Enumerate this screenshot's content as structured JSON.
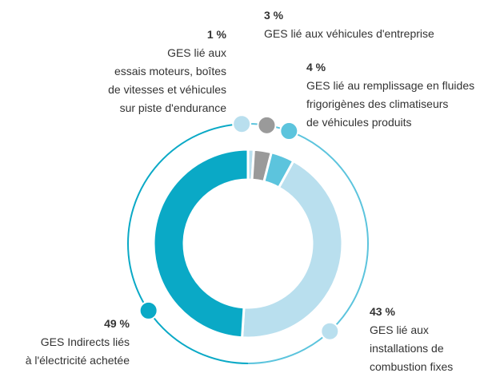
{
  "chart_data": {
    "type": "donut",
    "categories": [
      "GES lié aux\nessais moteurs, boîtes\nde vitesses et véhicules\nsur piste d'endurance",
      "GES lié aux véhicules d'entreprise",
      "GES lié au remplissage en fluides\nfrigorigènes des climatiseurs\nde véhicules produits",
      "GES lié aux\ninstallations de\ncombustion fixes",
      "GES Indirects liés\nà l'électricité achetée"
    ],
    "values": [
      1,
      3,
      4,
      43,
      49
    ],
    "value_labels": [
      "1 %",
      "3 %",
      "4 %",
      "43 %",
      "49 %"
    ],
    "colors": [
      "#b9dfee",
      "#9a9a9a",
      "#5cc4dd",
      "#b9dfee",
      "#0aa9c6"
    ]
  }
}
